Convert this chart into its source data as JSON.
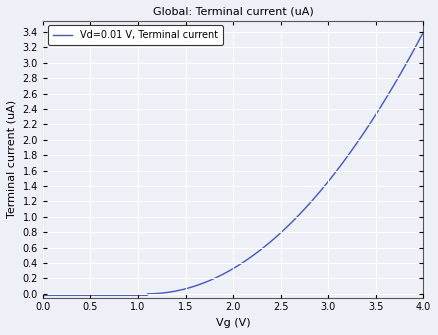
{
  "title": "Global: Terminal current (uA)",
  "xlabel": "Vg (V)",
  "ylabel": "Terminal current (uA)",
  "legend_label": "Vd=0.01 V, Terminal current",
  "line_color": "#4455bb",
  "background_color": "#eef0f8",
  "grid_color": "#ffffff",
  "xlim": [
    0,
    4
  ],
  "ylim": [
    -0.05,
    3.55
  ],
  "vt": 1.1,
  "k_quad": 0.385,
  "xticks": [
    0,
    0.5,
    1,
    1.5,
    2,
    2.5,
    3,
    3.5,
    4
  ],
  "yticks": [
    0,
    0.2,
    0.4,
    0.6,
    0.8,
    1.0,
    1.2,
    1.4,
    1.6,
    1.8,
    2.0,
    2.2,
    2.4,
    2.6,
    2.8,
    3.0,
    3.2,
    3.4
  ]
}
